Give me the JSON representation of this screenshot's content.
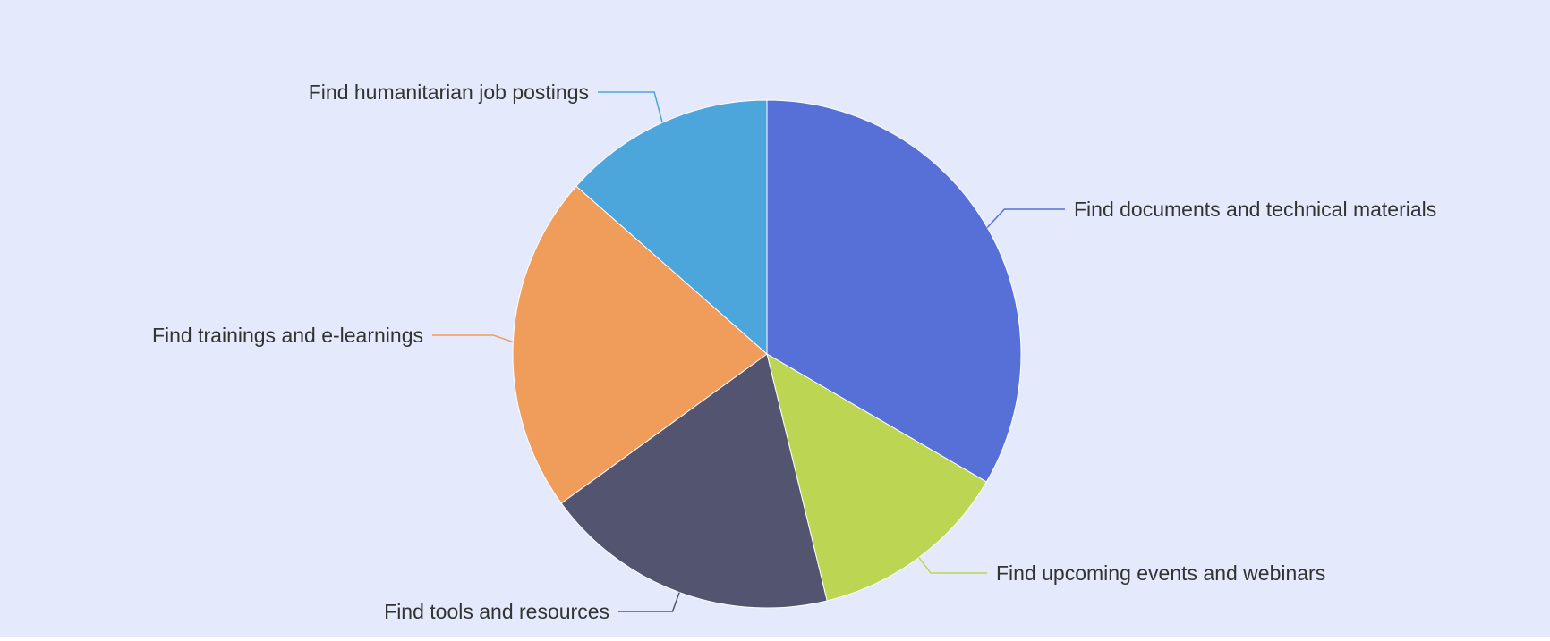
{
  "chart_data": {
    "type": "pie",
    "categories": [
      "Find documents and technical materials",
      "Find upcoming events and webinars",
      "Find tools and resources",
      "Find trainings and e-learnings",
      "Find humanitarian job postings"
    ],
    "values": [
      33.4,
      12.8,
      18.8,
      21.5,
      13.5
    ],
    "colors": [
      "#5670d8",
      "#bcd654",
      "#525470",
      "#f09d5c",
      "#4ca5db"
    ],
    "legend": "none"
  },
  "style": {
    "background": "#e4eafb"
  }
}
